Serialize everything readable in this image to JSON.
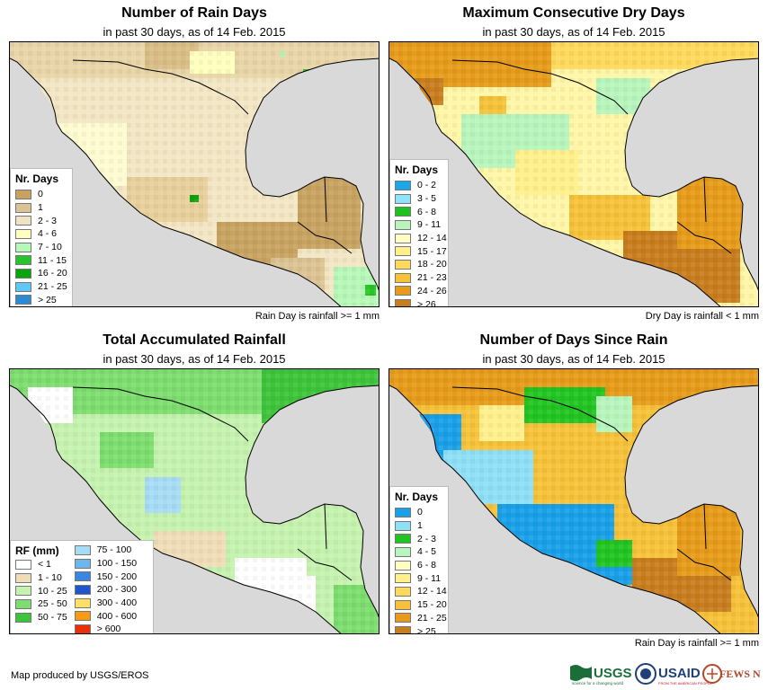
{
  "panels": [
    {
      "id": "rain-days",
      "title": "Number of Rain Days",
      "subtitle": "in past 30 days, as of 14 Feb. 2015",
      "footnote": "Rain Day is rainfall >= 1 mm",
      "legend": {
        "title": "Nr. Days",
        "items": [
          {
            "label": "0",
            "color": "#c8a261"
          },
          {
            "label": "1",
            "color": "#dcc393"
          },
          {
            "label": "2 - 3",
            "color": "#f0e3c3"
          },
          {
            "label": "4 - 6",
            "color": "#ffffc0"
          },
          {
            "label": "7 - 10",
            "color": "#b7f7b7"
          },
          {
            "label": "11 - 15",
            "color": "#29c429"
          },
          {
            "label": "16 - 20",
            "color": "#0aa50a"
          },
          {
            "label": "21 - 25",
            "color": "#5dc8f5"
          },
          {
            "label": "> 25",
            "color": "#2b8ad1"
          }
        ]
      }
    },
    {
      "id": "max-dry-days",
      "title": "Maximum Consecutive Dry Days",
      "subtitle": "in past 30 days, as of 14 Feb. 2015",
      "footnote": "Dry Day is rainfall < 1 mm",
      "legend": {
        "title": "Nr. Days",
        "items": [
          {
            "label": "0 - 2",
            "color": "#1aa6e8"
          },
          {
            "label": "3 - 5",
            "color": "#8fe2f7"
          },
          {
            "label": "6 - 8",
            "color": "#1fc11f"
          },
          {
            "label": "9 - 11",
            "color": "#b8f5bd"
          },
          {
            "label": "12 - 14",
            "color": "#ffffc4"
          },
          {
            "label": "15 - 17",
            "color": "#fff08c"
          },
          {
            "label": "18 - 20",
            "color": "#ffd95c"
          },
          {
            "label": "21 - 23",
            "color": "#f5c23a"
          },
          {
            "label": "24 - 26",
            "color": "#e69b1a"
          },
          {
            "label": "> 26",
            "color": "#c87d1e"
          }
        ]
      }
    },
    {
      "id": "total-rainfall",
      "title": "Total Accumulated Rainfall",
      "subtitle": "in past 30 days, as of 14 Feb. 2015",
      "footnote": "",
      "legend": {
        "title": "RF (mm)",
        "columns": [
          [
            {
              "label": "< 1",
              "color": "#ffffff"
            },
            {
              "label": "1 - 10",
              "color": "#f0ddb8"
            },
            {
              "label": "10 - 25",
              "color": "#c6f2b0"
            },
            {
              "label": "25 - 50",
              "color": "#7ddd6e"
            },
            {
              "label": "50 - 75",
              "color": "#3ec43a"
            }
          ],
          [
            {
              "label": "75 - 100",
              "color": "#a8dcf5"
            },
            {
              "label": "100 - 150",
              "color": "#6fb6ee"
            },
            {
              "label": "150 - 200",
              "color": "#3a86e0"
            },
            {
              "label": "200 - 300",
              "color": "#1f56cc"
            },
            {
              "label": "300 - 400",
              "color": "#ffe066"
            },
            {
              "label": "400 - 600",
              "color": "#f59b14"
            },
            {
              "label": "> 600",
              "color": "#e8300c"
            }
          ]
        ]
      }
    },
    {
      "id": "days-since-rain",
      "title": "Number of Days Since Rain",
      "subtitle": "in past 30 days, as of 14 Feb. 2015",
      "footnote": "Rain Day is rainfall >= 1 mm",
      "legend": {
        "title": "Nr. Days",
        "items": [
          {
            "label": "0",
            "color": "#1aa0e8"
          },
          {
            "label": "1",
            "color": "#8fe0f7"
          },
          {
            "label": "2 - 3",
            "color": "#22c422"
          },
          {
            "label": "4 - 5",
            "color": "#b8f5bd"
          },
          {
            "label": "6 - 8",
            "color": "#ffffc4"
          },
          {
            "label": "9 - 11",
            "color": "#fff08c"
          },
          {
            "label": "12 - 14",
            "color": "#ffd95c"
          },
          {
            "label": "15 - 20",
            "color": "#f5c23a"
          },
          {
            "label": "21 - 25",
            "color": "#e69b1a"
          },
          {
            "label": "> 25",
            "color": "#c87d1e"
          }
        ]
      }
    }
  ],
  "producer": "Map produced by USGS/EROS",
  "logos": {
    "usgs": "USGS",
    "usgs_tagline": "science for a changing world",
    "usaid": "USAID",
    "usaid_tagline": "FROM THE AMERICAN PEOPLE",
    "fews": "FEWS NET"
  },
  "colors": {
    "ocean": "#d9d9d9",
    "land_base_rain_days": "#f2e6c4",
    "land_base_dry_days": "#fff6a8",
    "land_base_rainfall": "#c6f2b0",
    "land_base_since_rain": "#f5c23a"
  }
}
